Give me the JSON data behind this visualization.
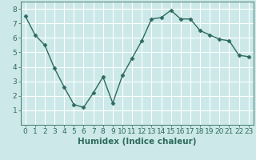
{
  "x": [
    0,
    1,
    2,
    3,
    4,
    5,
    6,
    7,
    8,
    9,
    10,
    11,
    12,
    13,
    14,
    15,
    16,
    17,
    18,
    19,
    20,
    21,
    22,
    23
  ],
  "y": [
    7.5,
    6.2,
    5.5,
    3.9,
    2.6,
    1.4,
    1.2,
    2.2,
    3.3,
    1.5,
    3.4,
    4.6,
    5.8,
    7.3,
    7.4,
    7.9,
    7.3,
    7.3,
    6.5,
    6.2,
    5.9,
    5.8,
    4.8,
    4.7
  ],
  "xlabel": "Humidex (Indice chaleur)",
  "xlim": [
    -0.5,
    23.5
  ],
  "ylim": [
    0,
    8.5
  ],
  "yticks": [
    1,
    2,
    3,
    4,
    5,
    6,
    7,
    8
  ],
  "xticks": [
    0,
    1,
    2,
    3,
    4,
    5,
    6,
    7,
    8,
    9,
    10,
    11,
    12,
    13,
    14,
    15,
    16,
    17,
    18,
    19,
    20,
    21,
    22,
    23
  ],
  "line_color": "#2e6b5e",
  "marker": "D",
  "marker_size": 2.5,
  "bg_color": "#cce8e8",
  "grid_color": "#ffffff",
  "xlabel_fontsize": 7.5,
  "tick_fontsize": 6.5,
  "linewidth": 1.0
}
